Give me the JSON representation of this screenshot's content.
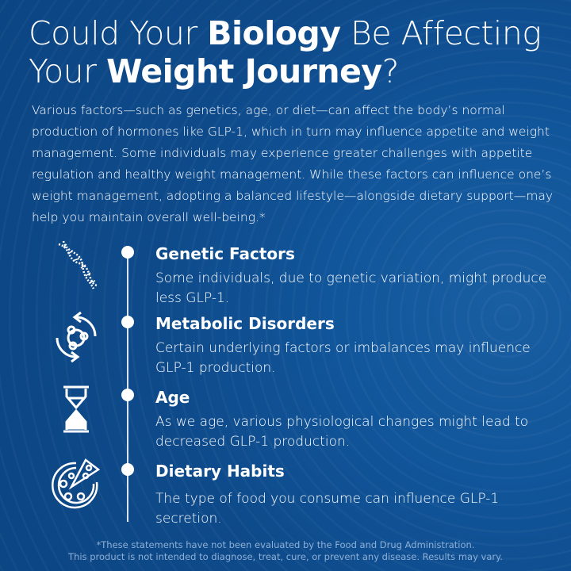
{
  "title": {
    "line1_pre": "Could Your ",
    "line1_bold": "Biology",
    "line1_post": " Be Affecting",
    "line2_pre": "Your ",
    "line2_bold": "Weight Journey",
    "line2_post": "?"
  },
  "intro": "Various factors—such as genetics, age, or diet—can affect the body’s normal production of hormones like GLP-1, which in turn may influence appetite and weight management. Some individuals may experience greater challenges with appetite regulation and healthy weight management. While these factors can influence one’s weight management, adopting a balanced lifestyle—alongside dietary support—may help you maintain overall well-being.*",
  "items": [
    {
      "heading": "Genetic Factors",
      "text": "Some individuals, due to genetic variation, might produce less GLP-1.",
      "icon": "dna-icon"
    },
    {
      "heading": "Metabolic Disorders",
      "text": "Certain underlying factors or imbalances may influence GLP-1 production.",
      "icon": "metabolism-cycle-icon"
    },
    {
      "heading": "Age",
      "text": "As we age, various physiological changes might lead to decreased GLP-1 production.",
      "icon": "hourglass-icon"
    },
    {
      "heading": "Dietary Habits",
      "text": "The type of food you consume can influence GLP-1 secretion.",
      "icon": "pizza-icon"
    }
  ],
  "footer": {
    "line1": "*These statements have not been evaluated by the Food and Drug Administration.",
    "line2": "This product is not intended to diagnose, treat, cure, or prevent any disease. Results may vary."
  },
  "colors": {
    "background": "#0f4f8f",
    "text": "#ffffff",
    "footer": "#8fb0d6"
  }
}
